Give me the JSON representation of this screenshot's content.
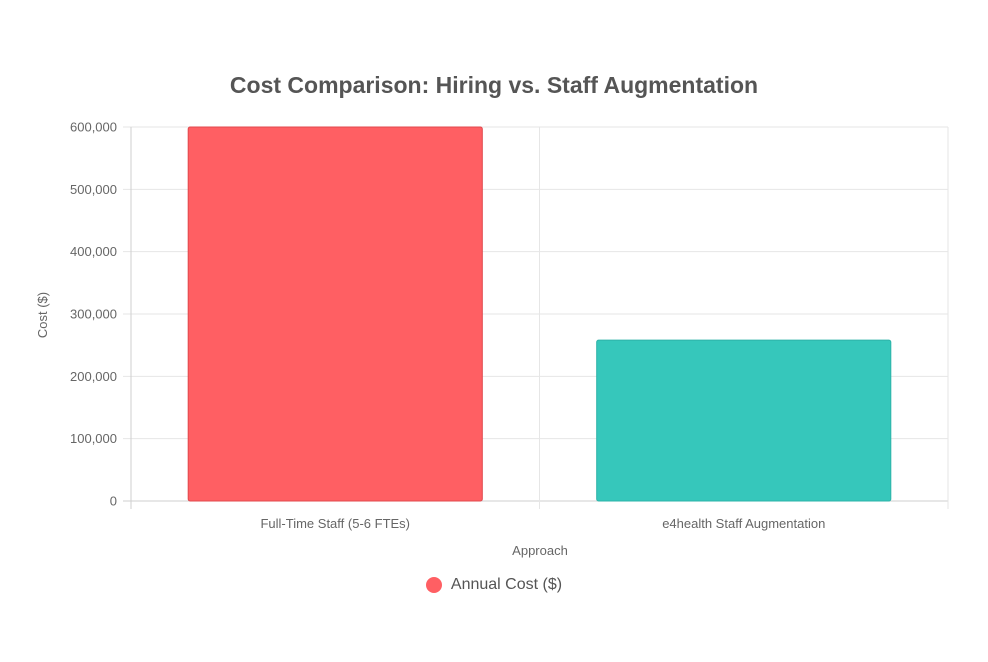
{
  "chart_data": {
    "type": "bar",
    "title": "Cost Comparison: Hiring vs. Staff Augmentation",
    "xlabel": "Approach",
    "ylabel": "Cost ($)",
    "categories": [
      "Full-Time Staff (5-6 FTEs)",
      "e4health Staff Augmentation"
    ],
    "series": [
      {
        "name": "Annual Cost ($)",
        "values": [
          600000,
          258000
        ],
        "colors": [
          "#ff5f63",
          "#36c7bb"
        ]
      }
    ],
    "ylim": [
      0,
      600000
    ],
    "yticks": [
      "0",
      "100,000",
      "200,000",
      "300,000",
      "400,000",
      "500,000",
      "600,000"
    ],
    "grid": true,
    "legend_position": "bottom"
  }
}
